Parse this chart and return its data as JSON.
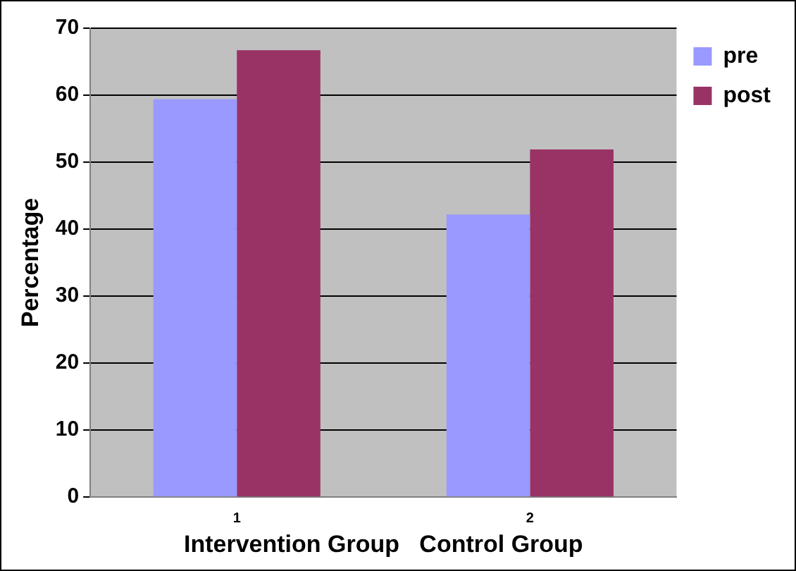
{
  "chart_data": {
    "type": "bar",
    "categories": [
      "1",
      "2"
    ],
    "xlabel": "Intervention Group   Control Group",
    "ylabel": "Percentage",
    "series": [
      {
        "name": "pre",
        "color": "#9999ff",
        "values": [
          59.4,
          42.2
        ]
      },
      {
        "name": "post",
        "color": "#993366",
        "values": [
          66.7,
          51.9
        ]
      }
    ],
    "ylim": [
      0,
      70
    ],
    "yticks": [
      0,
      10,
      20,
      30,
      40,
      50,
      60,
      70
    ],
    "grid": "y",
    "legend": "top right"
  }
}
